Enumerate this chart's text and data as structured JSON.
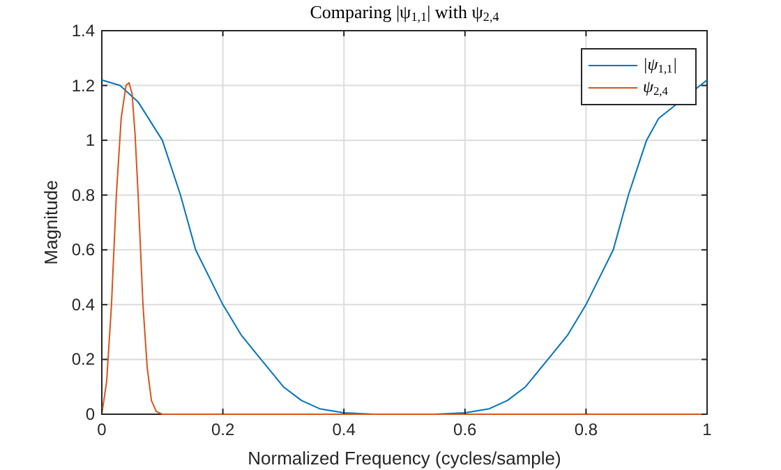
{
  "chart_data": {
    "type": "line",
    "title": "Comparing |ψ$_{1,1}$| with ψ$_{2,4}$",
    "xlabel": "Normalized Frequency (cycles/sample)",
    "ylabel": "Magnitude",
    "xlim": [
      0,
      1
    ],
    "ylim": [
      0,
      1.4
    ],
    "xticks": [
      0,
      0.2,
      0.4,
      0.6,
      0.8,
      1
    ],
    "yticks": [
      0,
      0.2,
      0.4,
      0.6,
      0.8,
      1,
      1.2,
      1.4
    ],
    "grid": true,
    "legend": "top right",
    "line_style": "solid",
    "marker": "none",
    "series": [
      {
        "name": "|ψ$_{1,1}$|",
        "color": "#0072bd",
        "x": [
          0,
          0.03,
          0.06,
          0.1,
          0.13,
          0.155,
          0.2,
          0.23,
          0.263,
          0.3,
          0.33,
          0.36,
          0.4,
          0.45,
          0.5,
          0.55,
          0.6,
          0.64,
          0.67,
          0.7,
          0.737,
          0.77,
          0.8,
          0.845,
          0.87,
          0.9,
          0.92,
          1
        ],
        "values": [
          1.22,
          1.2,
          1.14,
          1.0,
          0.8,
          0.6,
          0.4,
          0.29,
          0.2,
          0.1,
          0.05,
          0.02,
          0.005,
          0,
          0,
          0,
          0.005,
          0.02,
          0.05,
          0.1,
          0.2,
          0.29,
          0.4,
          0.6,
          0.8,
          1.0,
          1.08,
          1.22
        ]
      },
      {
        "name": "ψ$_{2,4}$",
        "color": "#d95319",
        "x": [
          0,
          0.008,
          0.016,
          0.024,
          0.032,
          0.04,
          0.045,
          0.05,
          0.055,
          0.06,
          0.068,
          0.075,
          0.082,
          0.09,
          0.1,
          0.5,
          1
        ],
        "values": [
          0,
          0.12,
          0.4,
          0.8,
          1.08,
          1.2,
          1.21,
          1.17,
          1.02,
          0.8,
          0.4,
          0.17,
          0.05,
          0.01,
          0,
          0,
          0
        ]
      }
    ]
  }
}
